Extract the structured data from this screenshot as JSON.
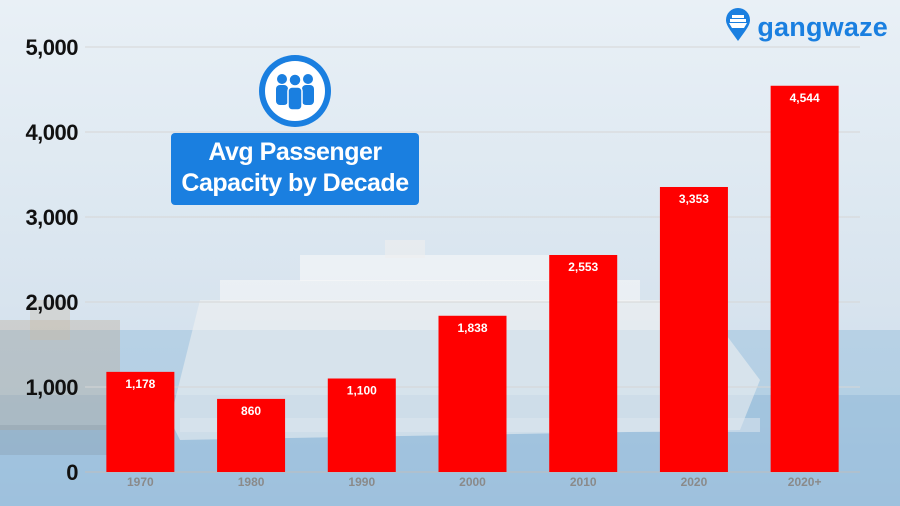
{
  "brand": {
    "name": "gangwaze",
    "logo_icon": "ship-pin-icon",
    "color": "#1a7fe0"
  },
  "title_icon": "people-group-icon",
  "chart_data": {
    "type": "bar",
    "title_lines": [
      "Avg Passenger",
      "Capacity by Decade"
    ],
    "categories": [
      "1970",
      "1980",
      "1990",
      "2000",
      "2010",
      "2020",
      "2020+"
    ],
    "values": [
      1178,
      860,
      1100,
      1838,
      2553,
      3353,
      4544
    ],
    "value_labels": [
      "1,178",
      "860",
      "1,100",
      "1,838",
      "2,553",
      "3,353",
      "4,544"
    ],
    "y_ticks": [
      0,
      1000,
      2000,
      3000,
      4000,
      5000
    ],
    "y_tick_labels": [
      "0",
      "1,000",
      "2,000",
      "3,000",
      "4,000",
      "5,000"
    ],
    "ylim": [
      0,
      5000
    ],
    "xlabel": "",
    "ylabel": "",
    "grid": true,
    "bar_color": "#ff0000",
    "legend": "none"
  }
}
